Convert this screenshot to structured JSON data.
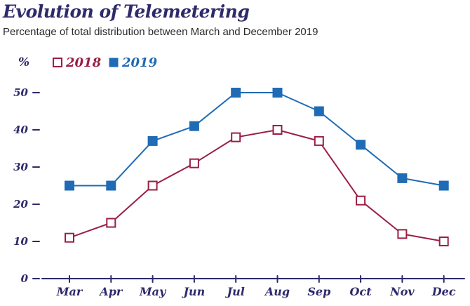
{
  "title": "Evolution of Telemetering",
  "subtitle": "Percentage of total distribution between March and December 2019",
  "colors": {
    "axis": "#2e2a6b",
    "s2018": "#9b1f45",
    "s2019": "#1f6bb5"
  },
  "chart_data": {
    "type": "line",
    "title": "Evolution of Telemetering",
    "subtitle": "Percentage of total distribution between March and December 2019",
    "ylabel": "%",
    "xlabel": "",
    "categories": [
      "Mar",
      "Apr",
      "May",
      "Jun",
      "Jul",
      "Aug",
      "Sep",
      "Oct",
      "Nov",
      "Dec"
    ],
    "yticks": [
      0,
      10,
      20,
      30,
      40,
      50
    ],
    "ylim": [
      0,
      50
    ],
    "grid": false,
    "legend_position": "top-left",
    "series": [
      {
        "name": "2018",
        "marker": "hollow-square",
        "color": "#9b1f45",
        "values": [
          11,
          15,
          25,
          31,
          38,
          40,
          37,
          21,
          12,
          10
        ]
      },
      {
        "name": "2019",
        "marker": "filled-square",
        "color": "#1f6bb5",
        "values": [
          25,
          25,
          37,
          41,
          50,
          50,
          45,
          36,
          27,
          25
        ]
      }
    ]
  }
}
